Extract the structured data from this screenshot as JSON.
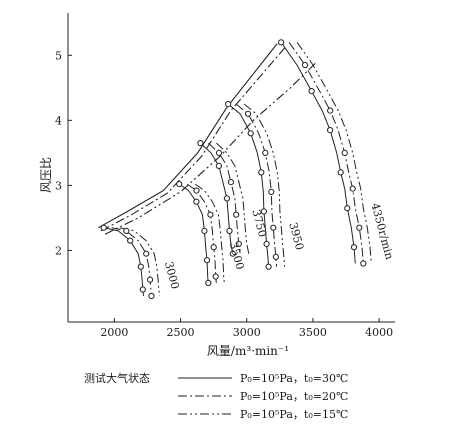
{
  "chart_data": {
    "type": "line",
    "title": "",
    "xlabel": "风量/m³·min⁻¹",
    "ylabel": "风压比",
    "xlim": [
      1650,
      4120
    ],
    "ylim": [
      0.9,
      5.65
    ],
    "xticks": [
      "2000",
      "2500",
      "3000",
      "3500",
      "4000"
    ],
    "yticks": [
      "2",
      "3",
      "4",
      "5"
    ],
    "grid": false,
    "legend": {
      "title": "测试大气状态",
      "placement": "bottom",
      "entries": [
        {
          "style": "solid",
          "label": "P₀=10⁵Pa，t₀=30℃"
        },
        {
          "style": "dashdot",
          "label": "P₀=10⁵Pa，t₀=20℃"
        },
        {
          "style": "dashdot2",
          "label": "P₀=10⁵Pa，t₀=15℃"
        }
      ]
    },
    "speed_lines": [
      {
        "label": "3000",
        "points": [
          [
            1920,
            2.35
          ],
          [
            2030,
            2.3
          ],
          [
            2120,
            2.15
          ],
          [
            2180,
            1.95
          ],
          [
            2200,
            1.75
          ],
          [
            2210,
            1.55
          ],
          [
            2215,
            1.4
          ],
          [
            2220,
            1.3
          ]
        ]
      },
      {
        "label": "3500",
        "points": [
          [
            2490,
            3.02
          ],
          [
            2560,
            2.92
          ],
          [
            2620,
            2.75
          ],
          [
            2665,
            2.55
          ],
          [
            2680,
            2.3
          ],
          [
            2690,
            2.05
          ],
          [
            2700,
            1.85
          ],
          [
            2705,
            1.6
          ],
          [
            2710,
            1.5
          ]
        ]
      },
      {
        "label": "3750",
        "points": [
          [
            2650,
            3.65
          ],
          [
            2730,
            3.5
          ],
          [
            2790,
            3.3
          ],
          [
            2820,
            3.05
          ],
          [
            2850,
            2.8
          ],
          [
            2860,
            2.55
          ],
          [
            2870,
            2.3
          ],
          [
            2880,
            2.1
          ],
          [
            2895,
            1.95
          ]
        ]
      },
      {
        "label": "3950",
        "points": [
          [
            2860,
            4.25
          ],
          [
            2950,
            4.1
          ],
          [
            3030,
            3.8
          ],
          [
            3080,
            3.5
          ],
          [
            3110,
            3.2
          ],
          [
            3125,
            2.9
          ],
          [
            3130,
            2.6
          ],
          [
            3140,
            2.35
          ],
          [
            3150,
            2.1
          ],
          [
            3160,
            1.9
          ],
          [
            3165,
            1.75
          ]
        ]
      },
      {
        "label": "4350r/min",
        "points": [
          [
            3260,
            5.2
          ],
          [
            3380,
            4.85
          ],
          [
            3490,
            4.45
          ],
          [
            3570,
            4.15
          ],
          [
            3630,
            3.85
          ],
          [
            3680,
            3.5
          ],
          [
            3710,
            3.2
          ],
          [
            3740,
            2.95
          ],
          [
            3760,
            2.65
          ],
          [
            3790,
            2.35
          ],
          [
            3810,
            2.05
          ],
          [
            3820,
            1.8
          ]
        ]
      }
    ],
    "surge_lines": [
      {
        "style": "solid",
        "points": [
          [
            1880,
            2.35
          ],
          [
            2100,
            2.6
          ],
          [
            2370,
            2.92
          ],
          [
            2630,
            3.5
          ],
          [
            2850,
            4.2
          ],
          [
            3230,
            5.18
          ]
        ]
      },
      {
        "style": "dashdot",
        "points": [
          [
            1900,
            2.3
          ],
          [
            2130,
            2.55
          ],
          [
            2400,
            2.88
          ],
          [
            2660,
            3.45
          ],
          [
            2880,
            4.15
          ],
          [
            3290,
            5.12
          ]
        ]
      },
      {
        "style": "dashdot2",
        "points": [
          [
            1930,
            2.25
          ],
          [
            2180,
            2.5
          ],
          [
            2500,
            2.9
          ],
          [
            2800,
            3.45
          ],
          [
            3050,
            4.0
          ],
          [
            3330,
            4.5
          ],
          [
            3530,
            4.9
          ]
        ]
      }
    ]
  }
}
